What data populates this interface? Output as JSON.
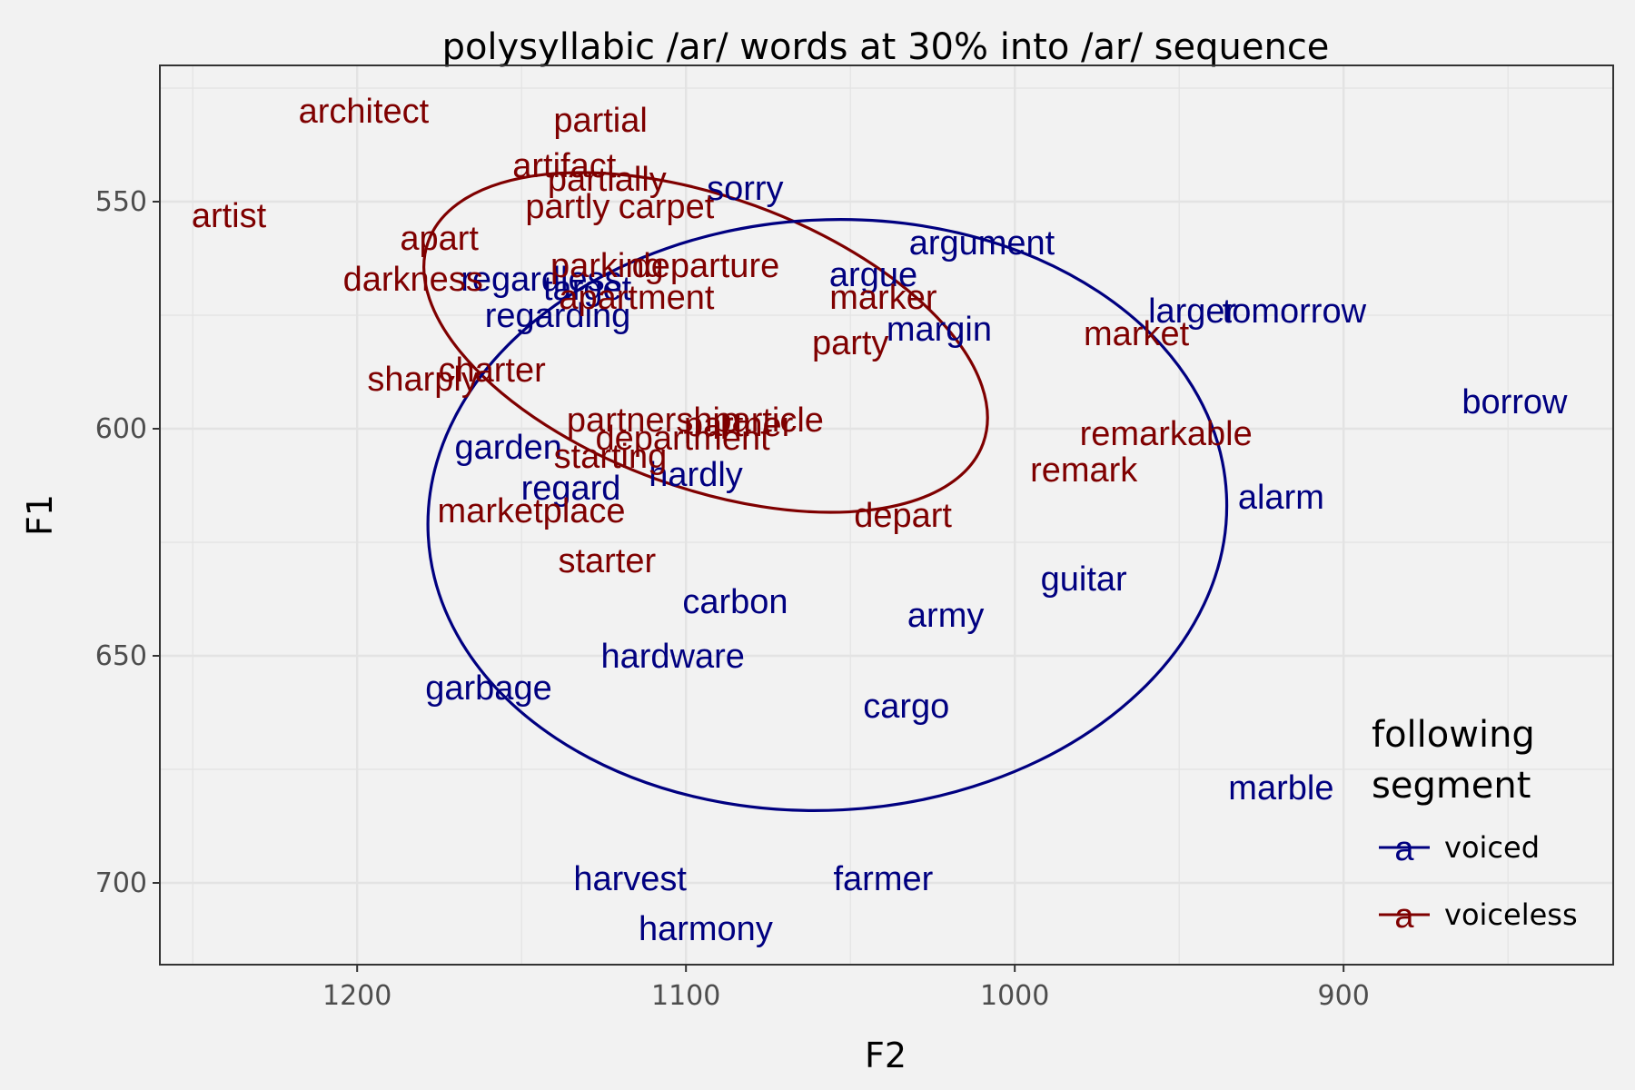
{
  "chart_data": {
    "type": "scatter",
    "title": "polysyllabic /ar/ words at 30% into /ar/ sequence",
    "xlabel": "F2",
    "ylabel": "F1",
    "xlim": [
      1260,
      818
    ],
    "ylim": [
      718,
      520
    ],
    "x_reversed": true,
    "y_reversed": true,
    "x_ticks": [
      1200,
      1100,
      1000,
      900
    ],
    "y_ticks": [
      550,
      600,
      650,
      700
    ],
    "grid": true,
    "legend": {
      "title_lines": [
        "following",
        "segment"
      ],
      "key_glyph": "a",
      "placement": "bottom-right",
      "entries": [
        {
          "label": "voiced",
          "color": "#000080"
        },
        {
          "label": "voiceless",
          "color": "#7f0000"
        }
      ]
    },
    "series": [
      {
        "name": "voiced",
        "color": "#000080",
        "points": [
          {
            "label": "sorry",
            "x": 1082,
            "y": 547
          },
          {
            "label": "argument",
            "x": 1010,
            "y": 559
          },
          {
            "label": "argue",
            "x": 1043,
            "y": 566
          },
          {
            "label": "regardless",
            "x": 1144,
            "y": 567
          },
          {
            "label": "target",
            "x": 1130,
            "y": 569
          },
          {
            "label": "regarding",
            "x": 1139,
            "y": 575
          },
          {
            "label": "margin",
            "x": 1023,
            "y": 578
          },
          {
            "label": "larger",
            "x": 946,
            "y": 574
          },
          {
            "label": "tomorrow",
            "x": 915,
            "y": 574
          },
          {
            "label": "borrow",
            "x": 848,
            "y": 594
          },
          {
            "label": "garden",
            "x": 1154,
            "y": 604
          },
          {
            "label": "regard",
            "x": 1135,
            "y": 613
          },
          {
            "label": "hardly",
            "x": 1097,
            "y": 610
          },
          {
            "label": "alarm",
            "x": 919,
            "y": 615
          },
          {
            "label": "guitar",
            "x": 979,
            "y": 633
          },
          {
            "label": "carbon",
            "x": 1085,
            "y": 638
          },
          {
            "label": "army",
            "x": 1021,
            "y": 641
          },
          {
            "label": "hardware",
            "x": 1104,
            "y": 650
          },
          {
            "label": "garbage",
            "x": 1160,
            "y": 657
          },
          {
            "label": "cargo",
            "x": 1033,
            "y": 661
          },
          {
            "label": "marble",
            "x": 919,
            "y": 679
          },
          {
            "label": "harvest",
            "x": 1117,
            "y": 699
          },
          {
            "label": "farmer",
            "x": 1040,
            "y": 699
          },
          {
            "label": "harmony",
            "x": 1094,
            "y": 710
          }
        ]
      },
      {
        "name": "voiceless",
        "color": "#7f0000",
        "points": [
          {
            "label": "architect",
            "x": 1198,
            "y": 530
          },
          {
            "label": "partial",
            "x": 1126,
            "y": 532
          },
          {
            "label": "artifact",
            "x": 1137,
            "y": 542
          },
          {
            "label": "partially",
            "x": 1124,
            "y": 545
          },
          {
            "label": "artist",
            "x": 1239,
            "y": 553
          },
          {
            "label": "partly",
            "x": 1136,
            "y": 551
          },
          {
            "label": "carpet",
            "x": 1106,
            "y": 551
          },
          {
            "label": "apart",
            "x": 1175,
            "y": 558
          },
          {
            "label": "parking",
            "x": 1124,
            "y": 564
          },
          {
            "label": "departure",
            "x": 1094,
            "y": 564
          },
          {
            "label": "darkness",
            "x": 1183,
            "y": 567
          },
          {
            "label": "apartment",
            "x": 1115,
            "y": 571
          },
          {
            "label": "marker",
            "x": 1040,
            "y": 571
          },
          {
            "label": "party",
            "x": 1050,
            "y": 581
          },
          {
            "label": "market",
            "x": 963,
            "y": 579
          },
          {
            "label": "charter",
            "x": 1159,
            "y": 587
          },
          {
            "label": "sharply",
            "x": 1180,
            "y": 589
          },
          {
            "label": "partnership",
            "x": 1110,
            "y": 598
          },
          {
            "label": "particle",
            "x": 1075,
            "y": 598
          },
          {
            "label": "partner",
            "x": 1084,
            "y": 599
          },
          {
            "label": "department",
            "x": 1101,
            "y": 602
          },
          {
            "label": "starting",
            "x": 1123,
            "y": 606
          },
          {
            "label": "remarkable",
            "x": 954,
            "y": 601
          },
          {
            "label": "remark",
            "x": 979,
            "y": 609
          },
          {
            "label": "depart",
            "x": 1034,
            "y": 619
          },
          {
            "label": "marketplace",
            "x": 1147,
            "y": 618
          },
          {
            "label": "starter",
            "x": 1124,
            "y": 629
          }
        ]
      }
    ],
    "ellipses": [
      {
        "series": "voiceless",
        "center_x": 1094,
        "center_y": 581,
        "color": "#7f0000"
      },
      {
        "series": "voiced",
        "center_x": 1057,
        "center_y": 619,
        "color": "#000080"
      }
    ]
  }
}
